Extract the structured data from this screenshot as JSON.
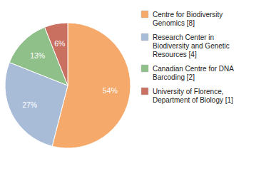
{
  "chart_data": {
    "type": "pie",
    "categories": [
      "Centre for Biodiversity\nGenomics [8]",
      "Research Center in\nBiodiversity and Genetic\nResources [4]",
      "Canadian Centre for DNA\nBarcoding [2]",
      "University of Florence,\nDepartment of Biology [1]"
    ],
    "values": [
      54,
      27,
      13,
      6
    ],
    "value_labels": [
      "54%",
      "27%",
      "13%",
      "6%"
    ],
    "data_labels": true,
    "colors": [
      "#f5a96a",
      "#a8bcd8",
      "#8fc08a",
      "#c97060"
    ],
    "legend": "right"
  }
}
